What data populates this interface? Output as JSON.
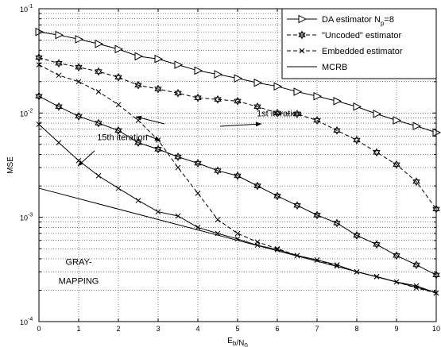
{
  "chart_data": {
    "type": "line",
    "xlabel": "E_b/N_0",
    "ylabel": "MSE",
    "xlim": [
      0,
      10
    ],
    "ylim": [
      0.0001,
      0.1
    ],
    "yscale": "log",
    "xticks": [
      0,
      1,
      2,
      3,
      4,
      5,
      6,
      7,
      8,
      9,
      10
    ],
    "grid": true,
    "legend_position": "top-right",
    "series": [
      {
        "name": "DA estimator N_p=8",
        "marker": "triangle-right",
        "dash": "solid",
        "x": [
          0,
          0.5,
          1,
          1.5,
          2,
          2.5,
          3,
          3.5,
          4,
          4.5,
          5,
          5.5,
          6,
          6.5,
          7,
          7.5,
          8,
          8.5,
          9,
          9.5,
          10
        ],
        "y": [
          0.06,
          0.056,
          0.051,
          0.046,
          0.041,
          0.035,
          0.033,
          0.029,
          0.0255,
          0.0235,
          0.0215,
          0.0195,
          0.018,
          0.016,
          0.0145,
          0.013,
          0.0115,
          0.0098,
          0.0085,
          0.0075,
          0.0065
        ]
      },
      {
        "name": "\"Uncoded\" estimator",
        "marker": "star",
        "dash": "dashed",
        "x": [
          0,
          0.5,
          1,
          1.5,
          2,
          2.5,
          3,
          3.5,
          4,
          4.5,
          5,
          5.5,
          6,
          6.5,
          7,
          7.5,
          8,
          8.5,
          9,
          9.5,
          10
        ],
        "y": [
          0.034,
          0.03,
          0.0275,
          0.025,
          0.022,
          0.0185,
          0.017,
          0.0155,
          0.014,
          0.0135,
          0.013,
          0.0115,
          0.01,
          0.0098,
          0.0085,
          0.0068,
          0.0055,
          0.0042,
          0.0032,
          0.0022,
          0.0012
        ]
      },
      {
        "name": "Embedded estimator",
        "marker": "x",
        "dash": "dashed",
        "x": [
          0,
          0.5,
          1,
          1.5,
          2,
          2.5,
          3,
          3.5,
          4,
          4.5,
          5,
          5.5,
          6,
          6.5,
          7,
          7.5,
          8,
          8.5,
          9,
          9.5,
          10
        ],
        "y": [
          0.029,
          0.023,
          0.02,
          0.016,
          0.012,
          0.0085,
          0.0055,
          0.003,
          0.0017,
          0.00095,
          0.0007,
          0.00058,
          0.0005,
          0.00043,
          0.00039,
          0.00034,
          0.0003,
          0.00027,
          0.00024,
          0.00021,
          0.000188
        ]
      },
      {
        "name": "",
        "marker": "star",
        "dash": "solid",
        "x": [
          0,
          0.5,
          1,
          1.5,
          2,
          2.5,
          3,
          3.5,
          4,
          4.5,
          5,
          5.5,
          6,
          6.5,
          7,
          7.5,
          8,
          8.5,
          9,
          9.5,
          10
        ],
        "y": [
          0.0145,
          0.0115,
          0.0093,
          0.008,
          0.0068,
          0.0052,
          0.0045,
          0.0038,
          0.0033,
          0.0028,
          0.0025,
          0.002,
          0.0016,
          0.0013,
          0.00105,
          0.00088,
          0.00067,
          0.00055,
          0.00043,
          0.00035,
          0.00028
        ]
      },
      {
        "name": "",
        "marker": "x",
        "dash": "solid",
        "x": [
          0,
          0.5,
          1,
          1.5,
          2,
          2.5,
          3,
          3.5,
          4,
          4.5,
          5,
          5.5,
          6,
          6.5,
          7,
          7.5,
          8,
          8.5,
          9,
          9.5,
          10
        ],
        "y": [
          0.0078,
          0.0052,
          0.0035,
          0.0025,
          0.0019,
          0.00145,
          0.00113,
          0.00103,
          0.0008,
          0.0007,
          0.00062,
          0.00054,
          0.00049,
          0.00043,
          0.00039,
          0.00035,
          0.0003,
          0.00027,
          0.00024,
          0.00022,
          0.000188
        ]
      },
      {
        "name": "MCRB",
        "marker": "none",
        "dash": "solid",
        "x": [
          0,
          10
        ],
        "y": [
          0.0019,
          0.00019
        ]
      }
    ],
    "annotations": [
      {
        "text": "1st iteration",
        "x": 6.05,
        "y": 0.0093
      },
      {
        "text": "15th iteration",
        "x": 2.1,
        "y": 0.0055
      },
      {
        "text": "GRAY-",
        "x": 1.0,
        "y": 0.00035
      },
      {
        "text": "MAPPING",
        "x": 1.0,
        "y": 0.00023
      }
    ]
  }
}
